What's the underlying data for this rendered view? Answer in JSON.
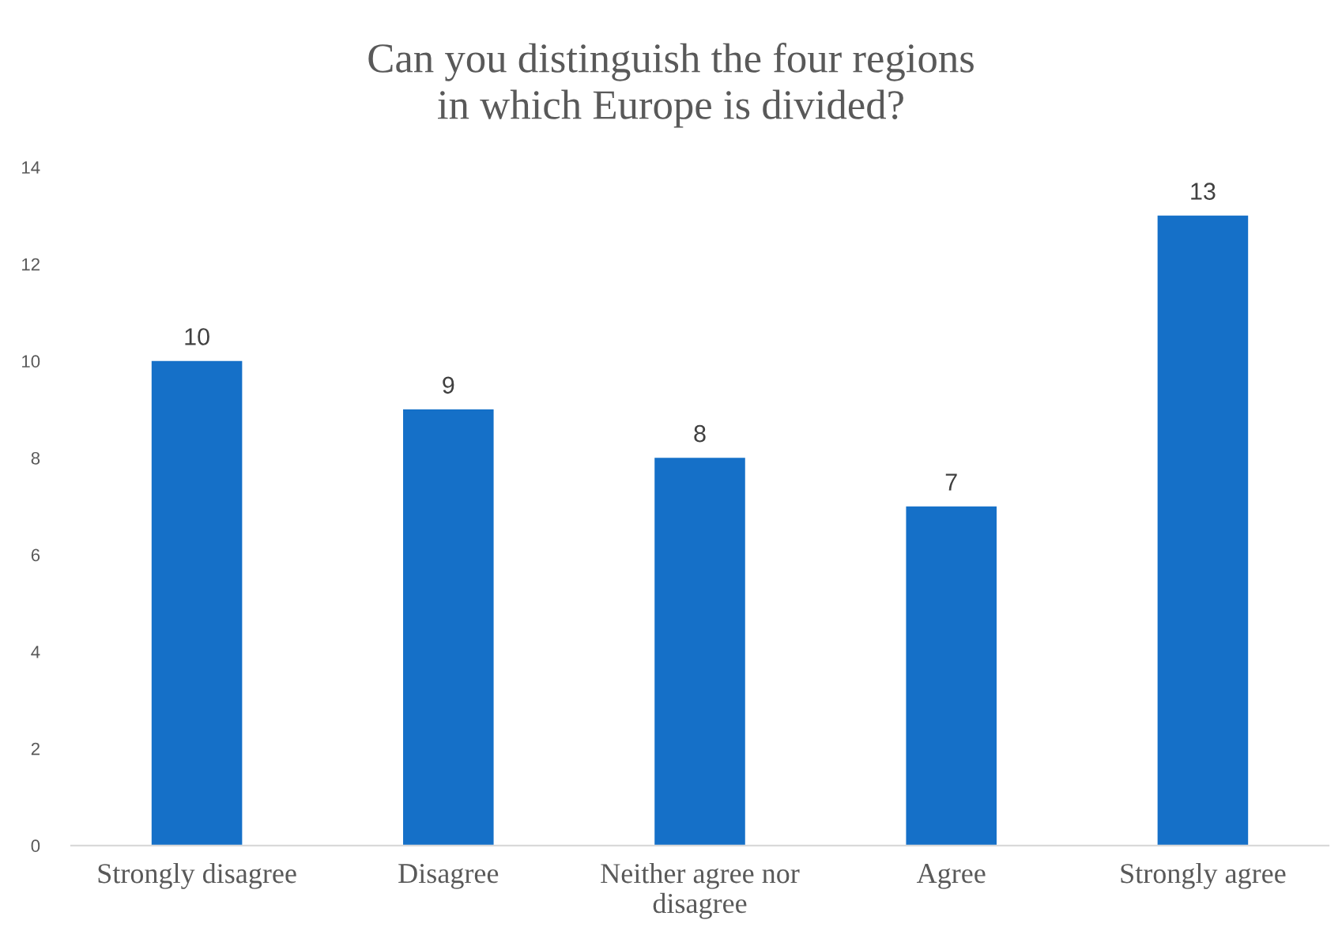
{
  "chart_data": {
    "type": "bar",
    "title": "Can you distinguish the four regions\nin which Europe is divided?",
    "categories": [
      "Strongly disagree",
      "Disagree",
      "Neither agree nor disagree",
      "Agree",
      "Strongly agree"
    ],
    "values": [
      10,
      9,
      8,
      7,
      13
    ],
    "color": "#1570c8",
    "ylim": [
      0,
      14
    ],
    "yticks": [
      0,
      2,
      4,
      6,
      8,
      10,
      12,
      14
    ],
    "grid": false,
    "data_labels": true
  }
}
